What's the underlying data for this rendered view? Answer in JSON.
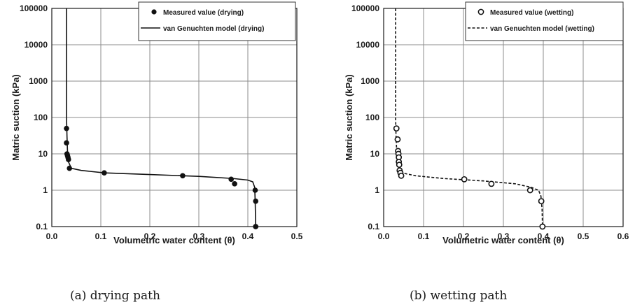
{
  "chart_data": [
    {
      "type": "scatter",
      "caption": "(a)  drying  path",
      "xlabel": "Volumetric water content (θ)",
      "ylabel": "Matric suction (kPa)",
      "xlim": [
        0,
        0.5
      ],
      "ylim": [
        0.1,
        100000
      ],
      "y_scale": "log",
      "grid": true,
      "legend_position": "top-right",
      "x_ticks": [
        "0.0",
        "0.1",
        "0.2",
        "0.3",
        "0.4",
        "0.5"
      ],
      "y_ticks": [
        "0.1",
        "1",
        "10",
        "100",
        "1000",
        "10000",
        "100000"
      ],
      "series": [
        {
          "name": "Measured value (drying)",
          "marker": "filled-circle",
          "x": [
            0.03,
            0.03,
            0.031,
            0.032,
            0.033,
            0.034,
            0.036,
            0.107,
            0.267,
            0.366,
            0.373,
            0.415,
            0.416,
            0.416,
            0.416
          ],
          "y": [
            50,
            20,
            10,
            9,
            8,
            7,
            4,
            3,
            2.5,
            2,
            1.5,
            1,
            0.5,
            0.1,
            0.1
          ]
        },
        {
          "name": "van Genuchten model (drying)",
          "line": "solid",
          "x": [
            0.03,
            0.03,
            0.031,
            0.032,
            0.034,
            0.04,
            0.06,
            0.107,
            0.2,
            0.3,
            0.37,
            0.4,
            0.41,
            0.414,
            0.415,
            0.416
          ],
          "y": [
            100000,
            100,
            30,
            12,
            6,
            4,
            3.5,
            3.0,
            2.7,
            2.4,
            2.1,
            1.9,
            1.7,
            1.2,
            0.5,
            0.1
          ]
        }
      ]
    },
    {
      "type": "scatter",
      "caption": "(b)  wetting  path",
      "xlabel": "Volumetric water content (θ)",
      "ylabel": "Matric suction (kPa)",
      "xlim": [
        0,
        0.6
      ],
      "ylim": [
        0.1,
        100000
      ],
      "y_scale": "log",
      "grid": true,
      "legend_position": "top-right",
      "x_ticks": [
        "0.0",
        "0.1",
        "0.2",
        "0.3",
        "0.4",
        "0.5",
        "0.6"
      ],
      "y_ticks": [
        "0.1",
        "1",
        "10",
        "100",
        "1000",
        "10000",
        "100000"
      ],
      "series": [
        {
          "name": "Measured value (wetting)",
          "marker": "open-circle",
          "x": [
            0.032,
            0.035,
            0.036,
            0.037,
            0.038,
            0.038,
            0.039,
            0.04,
            0.042,
            0.044,
            0.202,
            0.27,
            0.367,
            0.395,
            0.398
          ],
          "y": [
            50,
            25,
            12,
            10,
            8,
            6,
            5,
            3.5,
            3,
            2.5,
            2,
            1.5,
            1,
            0.5,
            0.1
          ]
        },
        {
          "name": "van Genuchten model (wetting)",
          "line": "dashed",
          "x": [
            0.03,
            0.03,
            0.031,
            0.033,
            0.036,
            0.045,
            0.08,
            0.15,
            0.25,
            0.33,
            0.37,
            0.388,
            0.394,
            0.397,
            0.398
          ],
          "y": [
            100000,
            100,
            30,
            10,
            5,
            3,
            2.5,
            2.1,
            1.8,
            1.5,
            1.2,
            1.0,
            0.7,
            0.3,
            0.1
          ]
        }
      ]
    }
  ]
}
